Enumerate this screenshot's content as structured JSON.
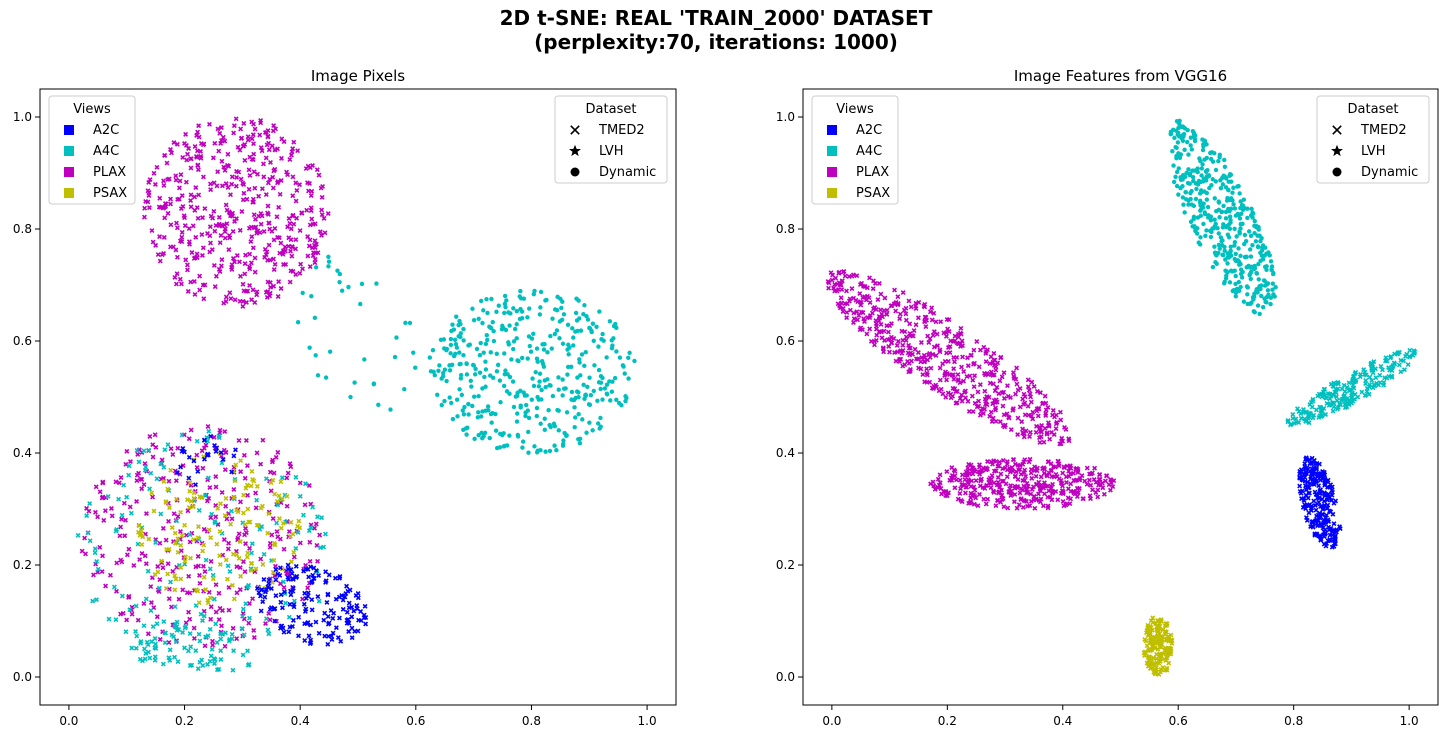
{
  "figure": {
    "title_line1": "2D t-SNE: REAL 'TRAIN_2000' DATASET",
    "title_line2": "(perplexity:70, iterations: 1000)"
  },
  "chart_data": [
    {
      "type": "scatter",
      "title": "Image Pixels",
      "xlabel": "",
      "ylabel": "",
      "xlim": [
        -0.05,
        1.05
      ],
      "ylim": [
        -0.05,
        1.05
      ],
      "xticks": [
        0.0,
        0.2,
        0.4,
        0.6,
        0.8,
        1.0
      ],
      "yticks": [
        0.0,
        0.2,
        0.4,
        0.6,
        0.8,
        1.0
      ],
      "xtick_labels": [
        "0.0",
        "0.2",
        "0.4",
        "0.6",
        "0.8",
        "1.0"
      ],
      "ytick_labels": [
        "0.0",
        "0.2",
        "0.4",
        "0.6",
        "0.8",
        "1.0"
      ],
      "grid": false,
      "legends": [
        {
          "title": "Views",
          "placement": "top-left",
          "kind": "color",
          "entries": [
            {
              "label": "A2C",
              "color": "#0000ff"
            },
            {
              "label": "A4C",
              "color": "#00bfbf"
            },
            {
              "label": "PLAX",
              "color": "#bf00bf"
            },
            {
              "label": "PSAX",
              "color": "#bfbf00"
            }
          ]
        },
        {
          "title": "Dataset",
          "placement": "top-right",
          "kind": "marker",
          "entries": [
            {
              "label": "TMED2",
              "marker": "x"
            },
            {
              "label": "LVH",
              "marker": "star"
            },
            {
              "label": "Dynamic",
              "marker": "circle"
            }
          ]
        }
      ],
      "clusters": [
        {
          "view": "PLAX",
          "dataset": "TMED2",
          "n": 480,
          "cx": 0.29,
          "cy": 0.83,
          "rx": 0.16,
          "ry": 0.17,
          "rot": 0
        },
        {
          "view": "A4C",
          "dataset": "Dynamic",
          "n": 420,
          "cx": 0.8,
          "cy": 0.545,
          "rx": 0.18,
          "ry": 0.145,
          "rot": 0
        },
        {
          "view": "A4C",
          "dataset": "Dynamic",
          "n": 35,
          "cx": 0.5,
          "cy": 0.6,
          "rx": 0.1,
          "ry": 0.16,
          "rot": 20
        },
        {
          "view": "PLAX",
          "dataset": "TMED2",
          "n": 340,
          "cx": 0.23,
          "cy": 0.25,
          "rx": 0.21,
          "ry": 0.2,
          "rot": 0
        },
        {
          "view": "A4C",
          "dataset": "TMED2",
          "n": 160,
          "cx": 0.23,
          "cy": 0.22,
          "rx": 0.22,
          "ry": 0.22,
          "rot": 0
        },
        {
          "view": "A4C",
          "dataset": "TMED2",
          "n": 70,
          "cx": 0.21,
          "cy": 0.06,
          "rx": 0.11,
          "ry": 0.05,
          "rot": 0
        },
        {
          "view": "PSAX",
          "dataset": "TMED2",
          "n": 150,
          "cx": 0.26,
          "cy": 0.26,
          "rx": 0.14,
          "ry": 0.14,
          "rot": 0
        },
        {
          "view": "A2C",
          "dataset": "TMED2",
          "n": 160,
          "cx": 0.42,
          "cy": 0.13,
          "rx": 0.1,
          "ry": 0.07,
          "rot": -20
        },
        {
          "view": "A2C",
          "dataset": "TMED2",
          "n": 25,
          "cx": 0.24,
          "cy": 0.38,
          "rx": 0.06,
          "ry": 0.05,
          "rot": 0
        }
      ]
    },
    {
      "type": "scatter",
      "title": "Image Features from VGG16",
      "xlabel": "",
      "ylabel": "",
      "xlim": [
        -0.05,
        1.05
      ],
      "ylim": [
        -0.05,
        1.05
      ],
      "xticks": [
        0.0,
        0.2,
        0.4,
        0.6,
        0.8,
        1.0
      ],
      "yticks": [
        0.0,
        0.2,
        0.4,
        0.6,
        0.8,
        1.0
      ],
      "xtick_labels": [
        "0.0",
        "0.2",
        "0.4",
        "0.6",
        "0.8",
        "1.0"
      ],
      "ytick_labels": [
        "0.0",
        "0.2",
        "0.4",
        "0.6",
        "0.8",
        "1.0"
      ],
      "grid": false,
      "legends": [
        {
          "title": "Views",
          "placement": "top-left",
          "kind": "color",
          "entries": [
            {
              "label": "A2C",
              "color": "#0000ff"
            },
            {
              "label": "A4C",
              "color": "#00bfbf"
            },
            {
              "label": "PLAX",
              "color": "#bf00bf"
            },
            {
              "label": "PSAX",
              "color": "#bfbf00"
            }
          ]
        },
        {
          "title": "Dataset",
          "placement": "top-right",
          "kind": "marker",
          "entries": [
            {
              "label": "TMED2",
              "marker": "x"
            },
            {
              "label": "LVH",
              "marker": "star"
            },
            {
              "label": "Dynamic",
              "marker": "circle"
            }
          ]
        }
      ],
      "clusters": [
        {
          "view": "A4C",
          "dataset": "Dynamic",
          "n": 430,
          "cx": 0.675,
          "cy": 0.82,
          "rx": 0.055,
          "ry": 0.19,
          "rot": 25
        },
        {
          "view": "PLAX",
          "dataset": "TMED2",
          "n": 520,
          "cx": 0.2,
          "cy": 0.57,
          "rx": 0.26,
          "ry": 0.06,
          "rot": -35
        },
        {
          "view": "PLAX",
          "dataset": "TMED2",
          "n": 380,
          "cx": 0.33,
          "cy": 0.345,
          "rx": 0.16,
          "ry": 0.045,
          "rot": 0
        },
        {
          "view": "A4C",
          "dataset": "TMED2",
          "n": 210,
          "cx": 0.9,
          "cy": 0.515,
          "rx": 0.13,
          "ry": 0.025,
          "rot": 30
        },
        {
          "view": "A2C",
          "dataset": "TMED2",
          "n": 230,
          "cx": 0.845,
          "cy": 0.31,
          "rx": 0.03,
          "ry": 0.085,
          "rot": 15
        },
        {
          "view": "PSAX",
          "dataset": "TMED2",
          "n": 170,
          "cx": 0.565,
          "cy": 0.055,
          "rx": 0.025,
          "ry": 0.055,
          "rot": 0
        }
      ]
    }
  ]
}
